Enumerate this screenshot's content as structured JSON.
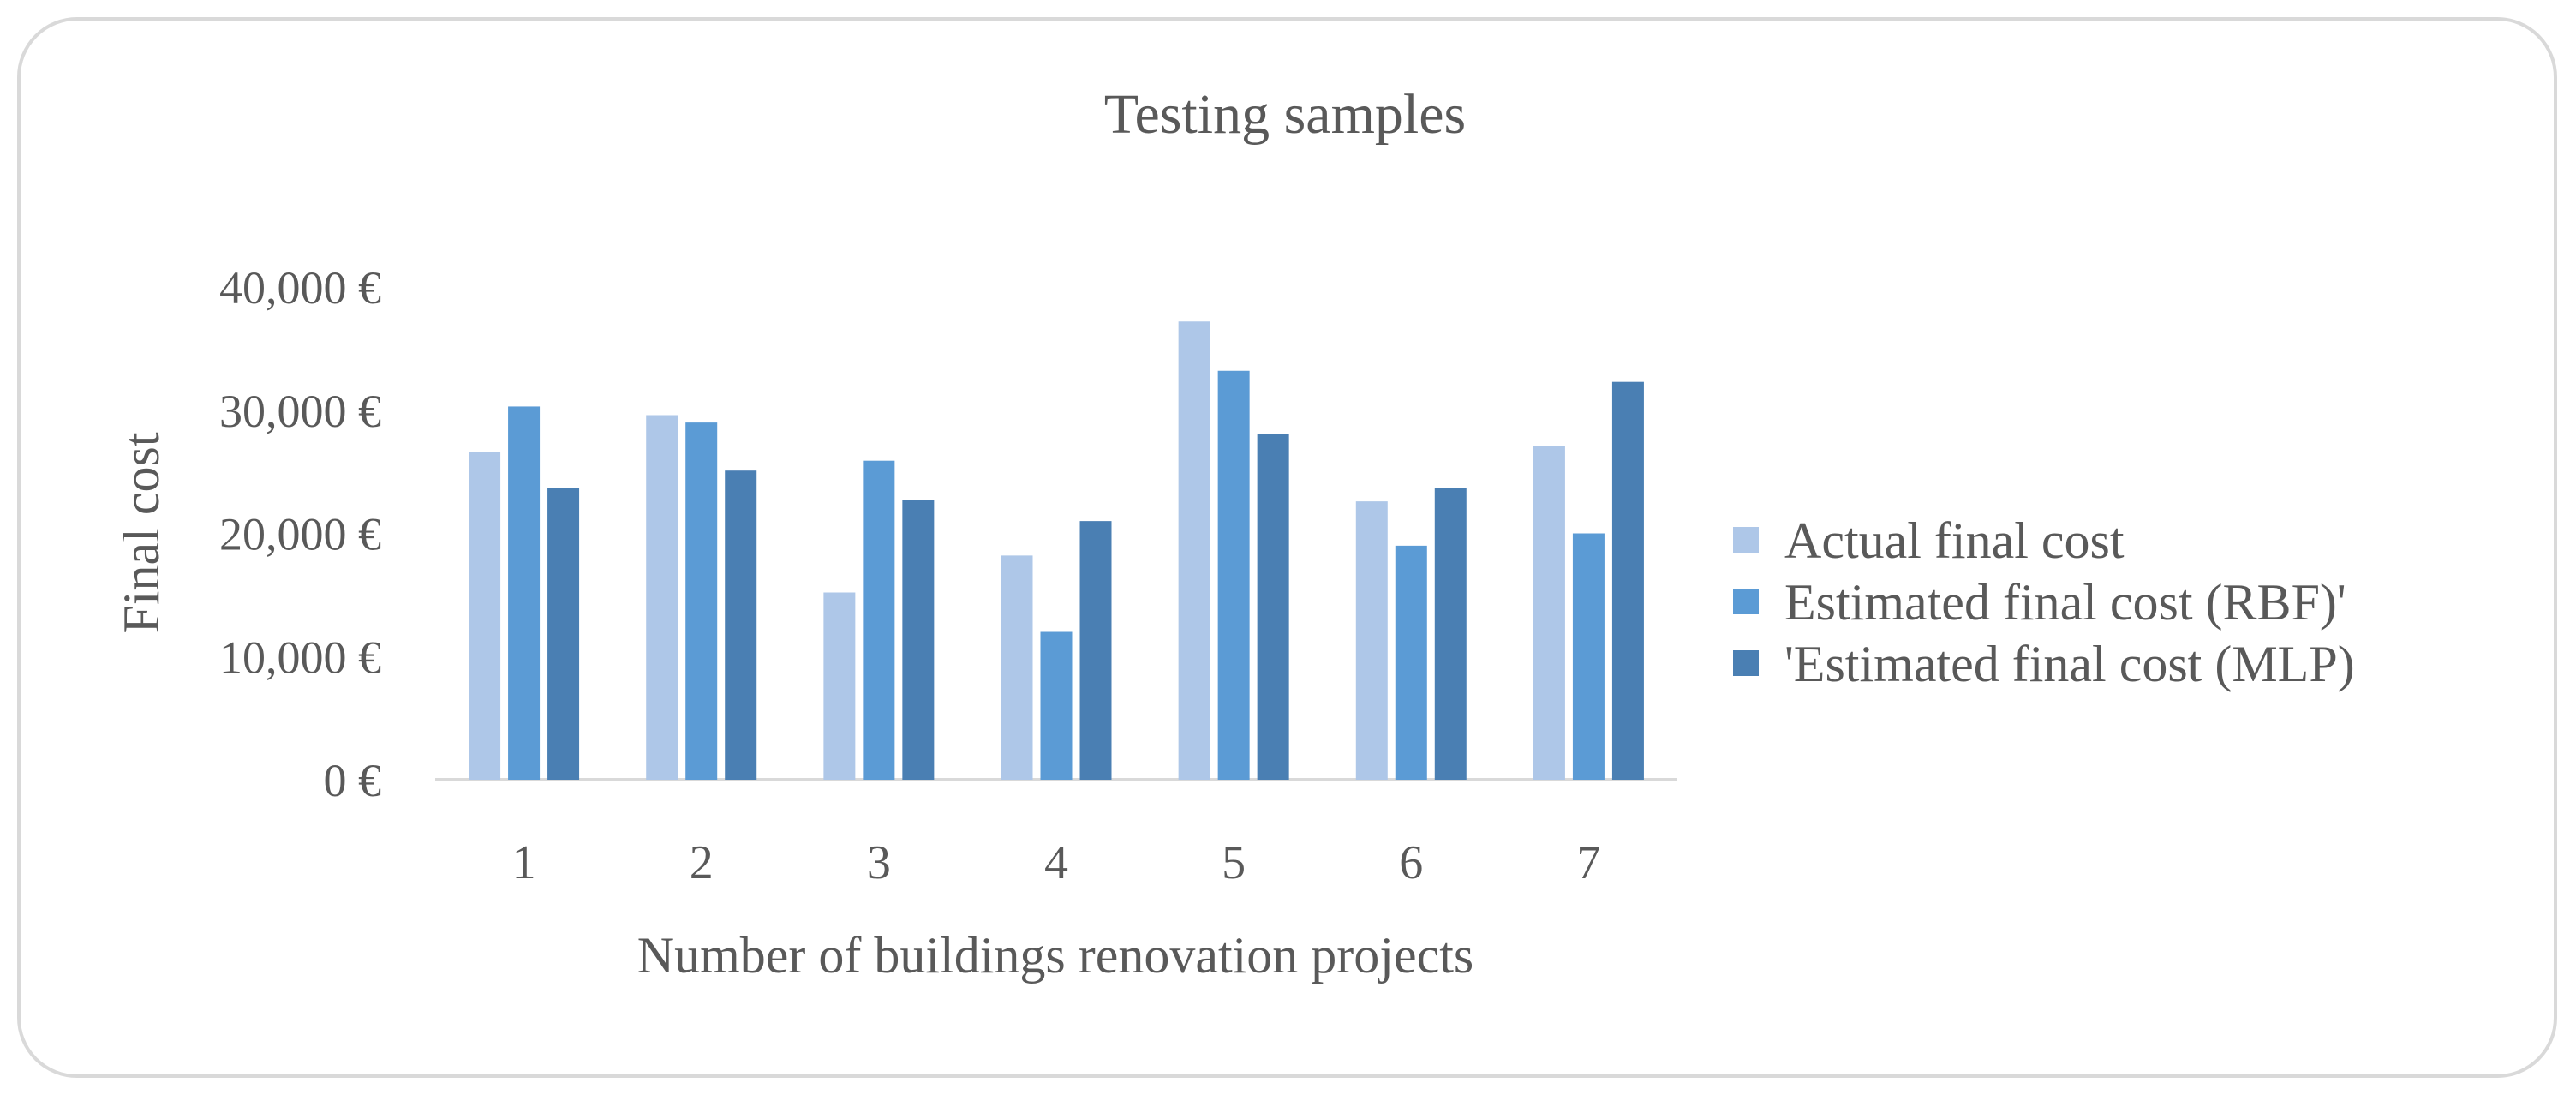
{
  "chart_data": {
    "type": "bar",
    "title": "Testing samples",
    "xlabel": "Number of buildings renovation projects",
    "ylabel": "Final cost",
    "categories": [
      "1",
      "2",
      "3",
      "4",
      "5",
      "6",
      "7"
    ],
    "ylim": [
      0,
      40000
    ],
    "yticks": [
      0,
      10000,
      20000,
      30000,
      40000
    ],
    "ytick_labels": [
      "0 €",
      "10,000 €",
      "20,000 €",
      "30,000 €",
      "40,000 €"
    ],
    "grid": false,
    "legend_position": "right",
    "series": [
      {
        "name": "Actual final cost",
        "color": "#aec7e8",
        "values": [
          26600,
          29600,
          15200,
          18200,
          37200,
          22600,
          27100
        ]
      },
      {
        "name": "Estimated final cost (RBF)'",
        "color": "#5b9bd5",
        "values": [
          30300,
          29000,
          25900,
          12000,
          33200,
          19000,
          20000
        ]
      },
      {
        "name": "'Estimated final cost (MLP)",
        "color": "#4a7fb3",
        "values": [
          23700,
          25100,
          22700,
          21000,
          28100,
          23700,
          32300
        ]
      }
    ]
  }
}
